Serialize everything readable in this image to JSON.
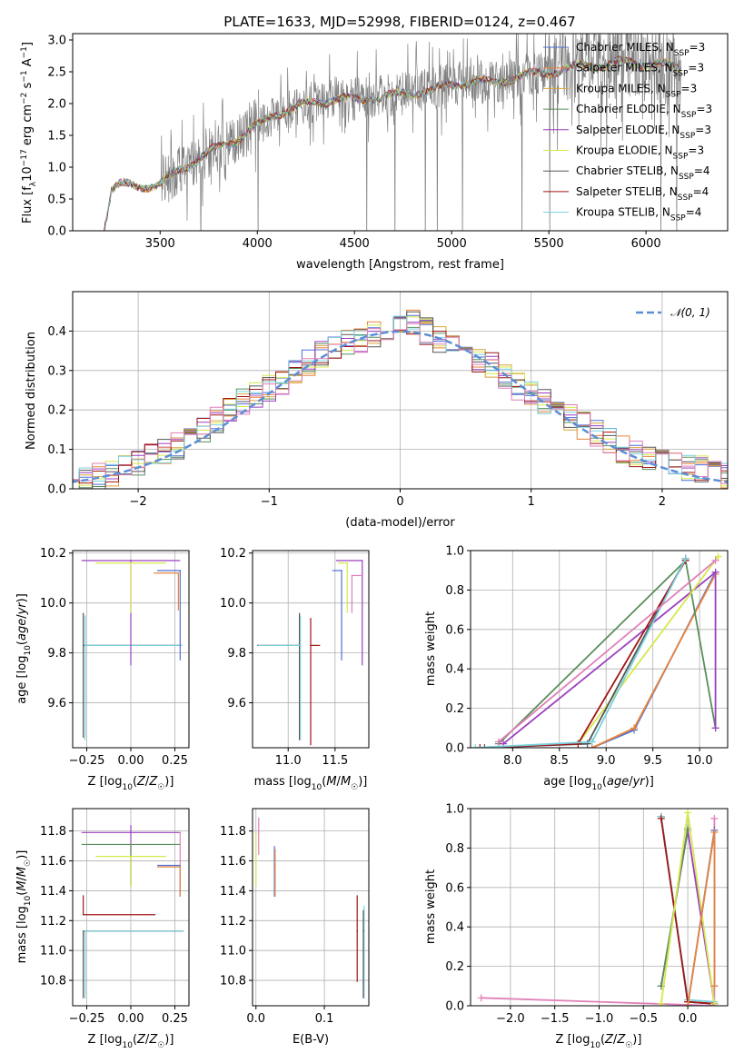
{
  "figure": {
    "title": "PLATE=1633, MJD=52998, FIBERID=0124, z=0.467"
  },
  "colors": {
    "Chabrier MILES": "#4f6fd6",
    "Salpeter MILES": "#e8843a",
    "Kroupa MILES": "#d9a23a",
    "Chabrier ELODIE": "#5a8f5a",
    "Salpeter ELODIE": "#9b3fbf",
    "Kroupa ELODIE": "#d6e84a",
    "Chabrier STELIB": "#555555",
    "Salpeter STELIB": "#a01515",
    "Kroupa STELIB": "#79d0dc",
    "Salpeter MILES extra": "#e07fb8",
    "gaussian": "#5b8ed6"
  },
  "chart_data": [
    {
      "id": "spectrum",
      "type": "line",
      "title": "PLATE=1633, MJD=52998, FIBERID=0124, z=0.467",
      "xlabel": "wavelength [Angstrom, rest frame]",
      "ylabel": "Flux [f_λ 10^-17 erg cm^-2 s^-1 A^-1]",
      "xlim": [
        3050,
        6420
      ],
      "ylim": [
        0,
        3.1
      ],
      "xticks": [
        3500,
        4000,
        4500,
        5000,
        5500,
        6000
      ],
      "yticks": [
        0.0,
        0.5,
        1.0,
        1.5,
        2.0,
        2.5,
        3.0
      ],
      "legend_position": "top-right",
      "grid": false,
      "series": [
        {
          "name": "Chabrier MILES, N_SSP=3"
        },
        {
          "name": "Salpeter MILES, N_SSP=3"
        },
        {
          "name": "Kroupa MILES, N_SSP=3"
        },
        {
          "name": "Chabrier ELODIE, N_SSP=3"
        },
        {
          "name": "Salpeter ELODIE, N_SSP=3"
        },
        {
          "name": "Kroupa ELODIE, N_SSP=3"
        },
        {
          "name": "Chabrier STELIB, N_SSP=4"
        },
        {
          "name": "Salpeter STELIB, N_SSP=4"
        },
        {
          "name": "Kroupa STELIB, N_SSP=4"
        }
      ],
      "model_continuum": {
        "x": [
          3210,
          3250,
          3300,
          3400,
          3500,
          3600,
          3700,
          3800,
          3900,
          4000,
          4100,
          4200,
          4300,
          4400,
          4500,
          4600,
          4700,
          4800,
          4900,
          5000,
          5100,
          5200,
          5300,
          5400,
          5500,
          5600,
          5700,
          5800,
          5900,
          6000,
          6100,
          6180
        ],
        "y": [
          0.0,
          0.65,
          0.72,
          0.7,
          0.72,
          0.95,
          1.15,
          1.3,
          1.45,
          1.65,
          1.85,
          1.95,
          2.02,
          2.08,
          2.05,
          2.1,
          2.12,
          2.18,
          2.2,
          2.3,
          2.35,
          2.32,
          2.4,
          2.45,
          2.5,
          2.55,
          2.6,
          2.62,
          2.65,
          2.63,
          2.6,
          2.55
        ]
      }
    },
    {
      "id": "residuals",
      "type": "line",
      "xlabel": "(data-model)/error",
      "ylabel": "Normed distribution",
      "xlim": [
        -2.5,
        2.5
      ],
      "ylim": [
        0,
        0.5
      ],
      "xticks": [
        -2,
        -1,
        0,
        1,
        2
      ],
      "yticks": [
        0.0,
        0.1,
        0.2,
        0.3,
        0.4
      ],
      "grid": true,
      "legend_position": "top-right",
      "legend": "𝒩(0, 1)",
      "gaussian": {
        "mean": 0,
        "sigma": 1
      },
      "hist_envelope": {
        "x": [
          -2.5,
          -2.3,
          -2.1,
          -1.9,
          -1.7,
          -1.5,
          -1.3,
          -1.1,
          -0.9,
          -0.7,
          -0.5,
          -0.3,
          -0.1,
          0.1,
          0.3,
          0.5,
          0.7,
          0.9,
          1.1,
          1.3,
          1.5,
          1.7,
          1.9,
          2.1,
          2.3,
          2.5
        ],
        "y": [
          0.03,
          0.03,
          0.05,
          0.08,
          0.11,
          0.15,
          0.2,
          0.24,
          0.27,
          0.32,
          0.36,
          0.38,
          0.4,
          0.42,
          0.38,
          0.35,
          0.31,
          0.26,
          0.22,
          0.18,
          0.14,
          0.1,
          0.08,
          0.06,
          0.05,
          0.03
        ]
      }
    },
    {
      "id": "age_vs_Z",
      "type": "scatter",
      "xlabel": "Z [log10(Z/Z☉)]",
      "ylabel": "age  [log10(age/yr)]",
      "xlim": [
        -0.33,
        0.33
      ],
      "ylim": [
        9.42,
        10.21
      ],
      "xticks": [
        -0.25,
        0.0,
        0.25
      ],
      "xticklabels": [
        "−0.25",
        "0.00",
        "0.25"
      ],
      "yticks": [
        9.6,
        9.8,
        10.0,
        10.2
      ],
      "grid": true,
      "points": [
        {
          "x": -0.27,
          "y": 9.83,
          "xerr": [
            0.0,
            0.56
          ],
          "yerr": [
            0.37,
            0.13
          ],
          "series": "Chabrier STELIB"
        },
        {
          "x": -0.26,
          "y": 9.83,
          "xerr": [
            0.0,
            0.55
          ],
          "yerr": [
            0.38,
            0.12
          ],
          "series": "Kroupa STELIB"
        },
        {
          "x": 0.0,
          "y": 10.17,
          "xerr": [
            0.28,
            0.28
          ],
          "yerr": [
            0.42,
            0.0
          ],
          "series": "Salpeter ELODIE"
        },
        {
          "x": 0.0,
          "y": 10.16,
          "xerr": [
            0.2,
            0.2
          ],
          "yerr": [
            0.2,
            0.0
          ],
          "series": "Kroupa ELODIE"
        },
        {
          "x": 0.28,
          "y": 10.13,
          "xerr": [
            0.13,
            0.0
          ],
          "yerr": [
            0.36,
            0.0
          ],
          "series": "Chabrier MILES"
        },
        {
          "x": 0.27,
          "y": 10.12,
          "xerr": [
            0.14,
            0.0
          ],
          "yerr": [
            0.15,
            0.0
          ],
          "series": "Salpeter MILES"
        }
      ]
    },
    {
      "id": "age_vs_mass",
      "type": "scatter",
      "xlabel": "mass [log10(M/M☉)]",
      "ylabel": "",
      "xlim": [
        10.62,
        11.86
      ],
      "ylim": [
        9.42,
        10.21
      ],
      "xticks": [
        11.0,
        11.5
      ],
      "yticks": [
        9.6,
        9.8,
        10.0,
        10.2
      ],
      "grid": true,
      "points": [
        {
          "x": 11.12,
          "y": 9.83,
          "xerr": [
            0.45,
            0.0
          ],
          "yerr": [
            0.38,
            0.13
          ],
          "series": "Chabrier STELIB"
        },
        {
          "x": 11.13,
          "y": 9.83,
          "xerr": [
            0.45,
            0.0
          ],
          "yerr": [
            0.38,
            0.12
          ],
          "series": "Kroupa STELIB"
        },
        {
          "x": 11.24,
          "y": 9.83,
          "xerr": [
            0.0,
            0.1
          ],
          "yerr": [
            0.4,
            0.11
          ],
          "series": "Salpeter STELIB"
        },
        {
          "x": 11.79,
          "y": 10.17,
          "xerr": [
            0.28,
            0.0
          ],
          "yerr": [
            0.42,
            0.0
          ],
          "series": "Salpeter ELODIE"
        },
        {
          "x": 11.63,
          "y": 10.16,
          "xerr": [
            0.1,
            0.0
          ],
          "yerr": [
            0.2,
            0.0
          ],
          "series": "Kroupa ELODIE"
        },
        {
          "x": 11.57,
          "y": 10.13,
          "xerr": [
            0.1,
            0.0
          ],
          "yerr": [
            0.36,
            0.0
          ],
          "series": "Chabrier MILES"
        },
        {
          "x": 11.68,
          "y": 10.11,
          "xerr": [
            0.0,
            0.1
          ],
          "yerr": [
            0.15,
            0.0
          ],
          "series": "Salpeter MILES extra"
        }
      ]
    },
    {
      "id": "weight_vs_age",
      "type": "line",
      "xlabel": "age  [log10(age/yr)]",
      "ylabel": "mass weight",
      "xlim": [
        7.55,
        10.3
      ],
      "ylim": [
        0,
        1.0
      ],
      "xticks": [
        8.0,
        8.5,
        9.0,
        9.5,
        10.0
      ],
      "yticks": [
        0.0,
        0.2,
        0.4,
        0.6,
        0.8,
        1.0
      ],
      "grid": true,
      "series": [
        {
          "key": "Chabrier MILES",
          "x": [
            8.85,
            9.3,
            10.17
          ],
          "y": [
            0.0,
            0.09,
            0.89
          ]
        },
        {
          "key": "Salpeter MILES",
          "x": [
            8.85,
            9.3,
            10.17
          ],
          "y": [
            0.0,
            0.1,
            0.88
          ]
        },
        {
          "key": "Chabrier ELODIE",
          "x": [
            7.85,
            9.85,
            10.17
          ],
          "y": [
            0.02,
            0.95,
            0.1
          ]
        },
        {
          "key": "Salpeter ELODIE",
          "x": [
            7.9,
            10.17,
            10.17
          ],
          "y": [
            0.02,
            0.89,
            0.1
          ]
        },
        {
          "key": "Kroupa ELODIE",
          "x": [
            8.7,
            10.2
          ],
          "y": [
            0.02,
            0.97
          ]
        },
        {
          "key": "Chabrier STELIB",
          "x": [
            7.7,
            8.8,
            9.85
          ],
          "y": [
            0.0,
            0.02,
            0.96
          ]
        },
        {
          "key": "Salpeter STELIB",
          "x": [
            7.65,
            8.7,
            9.85
          ],
          "y": [
            0.0,
            0.02,
            0.95
          ]
        },
        {
          "key": "Kroupa STELIB",
          "x": [
            7.6,
            8.85,
            9.85
          ],
          "y": [
            0.0,
            0.03,
            0.96
          ]
        },
        {
          "key": "Salpeter MILES extra",
          "x": [
            7.85,
            10.17
          ],
          "y": [
            0.03,
            0.95
          ]
        }
      ]
    },
    {
      "id": "mass_vs_Z",
      "type": "scatter",
      "xlabel": "Z [log10(Z/Z☉)]",
      "ylabel": "mass [log10(M/M☉)]",
      "xlim": [
        -0.33,
        0.33
      ],
      "ylim": [
        10.63,
        11.95
      ],
      "xticks": [
        -0.25,
        0.0,
        0.25
      ],
      "xticklabels": [
        "−0.25",
        "0.00",
        "0.25"
      ],
      "yticks": [
        10.8,
        11.0,
        11.2,
        11.4,
        11.6,
        11.8
      ],
      "grid": true,
      "points": [
        {
          "x": -0.27,
          "y": 11.13,
          "xerr": [
            0.0,
            0.57
          ],
          "yerr": [
            0.45,
            0.0
          ],
          "series": "Chabrier STELIB"
        },
        {
          "x": -0.26,
          "y": 11.13,
          "xerr": [
            0.0,
            0.56
          ],
          "yerr": [
            0.45,
            0.0
          ],
          "series": "Kroupa STELIB"
        },
        {
          "x": -0.27,
          "y": 11.24,
          "xerr": [
            0.0,
            0.41
          ],
          "yerr": [
            0.0,
            0.13
          ],
          "series": "Salpeter STELIB"
        },
        {
          "x": 0.0,
          "y": 11.79,
          "xerr": [
            0.28,
            0.28
          ],
          "yerr": [
            0.36,
            0.05
          ],
          "series": "Salpeter ELODIE"
        },
        {
          "x": 0.0,
          "y": 11.71,
          "xerr": [
            0.28,
            0.28
          ],
          "yerr": [
            0.27,
            0.0
          ],
          "series": "Chabrier ELODIE"
        },
        {
          "x": 0.0,
          "y": 11.63,
          "xerr": [
            0.2,
            0.2
          ],
          "yerr": [
            0.2,
            0.0
          ],
          "series": "Kroupa ELODIE"
        },
        {
          "x": 0.28,
          "y": 11.57,
          "xerr": [
            0.13,
            0.0
          ],
          "yerr": [
            0.21,
            0.0
          ],
          "series": "Chabrier MILES"
        },
        {
          "x": 0.28,
          "y": 11.56,
          "xerr": [
            0.13,
            0.0
          ],
          "yerr": [
            0.2,
            0.0
          ],
          "series": "Salpeter MILES"
        },
        {
          "x": 0.28,
          "y": 11.79,
          "xerr": [
            0.0,
            0.0
          ],
          "yerr": [
            0.22,
            0.0
          ],
          "series": "Salpeter MILES extra"
        }
      ]
    },
    {
      "id": "mass_vs_ebv",
      "type": "scatter",
      "xlabel": "E(B-V)",
      "ylabel": "",
      "xlim": [
        -0.005,
        0.165
      ],
      "ylim": [
        10.63,
        11.95
      ],
      "xticks": [
        0.0,
        0.1
      ],
      "xticklabels": [
        "0.0",
        "0.1"
      ],
      "yticks": [
        10.8,
        11.0,
        11.2,
        11.4,
        11.6,
        11.8
      ],
      "grid": true,
      "points": [
        {
          "x": 0.0,
          "y": 11.79,
          "yerr": [
            0.36,
            0.0
          ],
          "series": "Kroupa ELODIE"
        },
        {
          "x": 0.004,
          "y": 11.79,
          "yerr": [
            0.15,
            0.1
          ],
          "series": "Salpeter MILES extra"
        },
        {
          "x": 0.027,
          "y": 11.57,
          "yerr": [
            0.21,
            0.13
          ],
          "series": "Chabrier MILES"
        },
        {
          "x": 0.028,
          "y": 11.56,
          "yerr": [
            0.2,
            0.12
          ],
          "series": "Salpeter MILES"
        },
        {
          "x": 0.148,
          "y": 11.13,
          "yerr": [
            0.34,
            0.24
          ],
          "series": "Salpeter STELIB"
        },
        {
          "x": 0.158,
          "y": 11.13,
          "yerr": [
            0.45,
            0.17
          ],
          "series": "Kroupa STELIB"
        },
        {
          "x": 0.157,
          "y": 11.13,
          "yerr": [
            0.45,
            0.14
          ],
          "series": "Chabrier STELIB"
        }
      ]
    },
    {
      "id": "weight_vs_Z",
      "type": "line",
      "xlabel": "Z [log10(Z/Z☉)]",
      "ylabel": "mass weight",
      "xlim": [
        -2.45,
        0.45
      ],
      "ylim": [
        0,
        1.0
      ],
      "xticks": [
        -2.0,
        -1.5,
        -1.0,
        -0.5,
        0.0
      ],
      "xticklabels": [
        "−2.0",
        "−1.5",
        "−1.0",
        "−0.5",
        "0.0"
      ],
      "yticks": [
        0.0,
        0.2,
        0.4,
        0.6,
        0.8,
        1.0
      ],
      "grid": true,
      "series": [
        {
          "key": "Salpeter MILES extra",
          "x": [
            -2.33,
            0.3,
            0.3
          ],
          "y": [
            0.04,
            0.0,
            0.95
          ]
        },
        {
          "key": "Chabrier STELIB",
          "x": [
            -0.3,
            0.0,
            0.3
          ],
          "y": [
            0.96,
            0.02,
            0.01
          ]
        },
        {
          "key": "Kroupa STELIB",
          "x": [
            -0.3,
            0.0,
            0.3
          ],
          "y": [
            0.96,
            0.03,
            0.02
          ]
        },
        {
          "key": "Salpeter STELIB",
          "x": [
            -0.3,
            0.0,
            0.3
          ],
          "y": [
            0.95,
            0.02,
            0.01
          ]
        },
        {
          "key": "Salpeter ELODIE",
          "x": [
            -0.3,
            0.0,
            0.3
          ],
          "y": [
            0.1,
            0.89,
            0.01
          ]
        },
        {
          "key": "Chabrier ELODIE",
          "x": [
            -0.3,
            0.0
          ],
          "y": [
            0.1,
            0.9
          ]
        },
        {
          "key": "Kroupa ELODIE",
          "x": [
            -0.3,
            0.0,
            0.3
          ],
          "y": [
            0.01,
            0.98,
            0.01
          ]
        },
        {
          "key": "Chabrier MILES",
          "x": [
            0.0,
            0.3,
            0.3
          ],
          "y": [
            0.0,
            0.89,
            0.1
          ]
        },
        {
          "key": "Salpeter MILES",
          "x": [
            0.0,
            0.3,
            0.3
          ],
          "y": [
            0.0,
            0.88,
            0.1
          ]
        }
      ]
    }
  ]
}
